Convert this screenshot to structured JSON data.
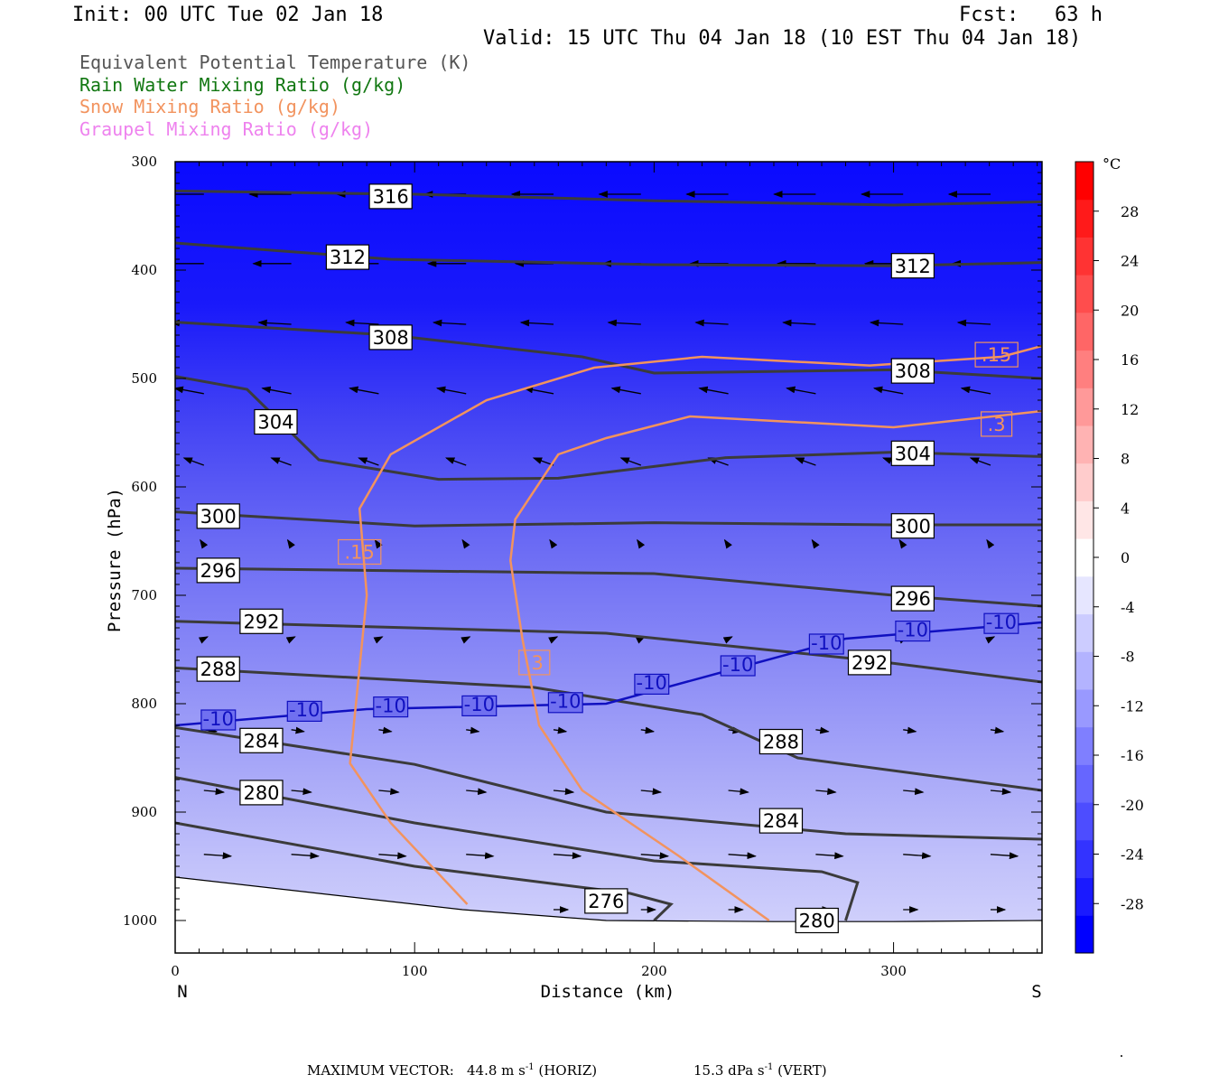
{
  "header": {
    "init": "Init: 00 UTC Tue 02 Jan 18",
    "fcst": "Fcst:   63 h",
    "valid": "Valid: 15 UTC Thu 04 Jan 18 (10 EST Thu 04 Jan 18)"
  },
  "legend": [
    {
      "label": "Equivalent Potential Temperature (K)",
      "color": "#555555"
    },
    {
      "label": "Rain Water Mixing Ratio (g/kg)",
      "color": "#117711"
    },
    {
      "label": "Snow Mixing Ratio (g/kg)",
      "color": "#f2935e"
    },
    {
      "label": "Graupel Mixing Ratio (g/kg)",
      "color": "#ee82ee"
    }
  ],
  "chart_data": {
    "type": "cross-section",
    "xlabel": "Distance (km)",
    "ylabel": "Pressure (hPa)",
    "xlim": [
      0,
      362
    ],
    "ylim": [
      1030,
      300
    ],
    "x_ticks": [
      "0",
      "100",
      "200",
      "300"
    ],
    "y_ticks": [
      "300",
      "400",
      "500",
      "600",
      "700",
      "800",
      "900",
      "1000"
    ],
    "x_end_labels": {
      "left": "N",
      "right": "S"
    },
    "theta_e_contours": [
      {
        "label": "316",
        "points": [
          [
            0,
            327
          ],
          [
            100,
            330
          ],
          [
            200,
            336
          ],
          [
            300,
            340
          ],
          [
            362,
            337
          ]
        ],
        "label_at": [
          90,
          332
        ]
      },
      {
        "label": "312",
        "points": [
          [
            0,
            375
          ],
          [
            90,
            390
          ],
          [
            200,
            395
          ],
          [
            300,
            396
          ],
          [
            362,
            393
          ]
        ],
        "label_at": [
          72,
          388
        ]
      },
      {
        "label": "312",
        "points": [],
        "label_at": [
          308,
          396
        ]
      },
      {
        "label": "308",
        "points": [
          [
            0,
            448
          ],
          [
            90,
            460
          ],
          [
            170,
            480
          ],
          [
            200,
            495
          ],
          [
            300,
            492
          ],
          [
            362,
            500
          ]
        ],
        "label_at": [
          90,
          462
        ]
      },
      {
        "label": "308",
        "points": [],
        "label_at": [
          308,
          493
        ]
      },
      {
        "label": "304",
        "points": [
          [
            0,
            498
          ],
          [
            30,
            510
          ],
          [
            60,
            575
          ],
          [
            110,
            593
          ],
          [
            160,
            592
          ],
          [
            230,
            573
          ],
          [
            300,
            568
          ],
          [
            362,
            572
          ]
        ],
        "label_at": [
          42,
          540
        ]
      },
      {
        "label": "304",
        "points": [],
        "label_at": [
          308,
          569
        ]
      },
      {
        "label": "300",
        "points": [
          [
            0,
            623
          ],
          [
            100,
            636
          ],
          [
            200,
            633
          ],
          [
            300,
            635
          ],
          [
            362,
            635
          ]
        ],
        "label_at": [
          18,
          627
        ]
      },
      {
        "label": "300",
        "points": [],
        "label_at": [
          308,
          636
        ]
      },
      {
        "label": "296",
        "points": [
          [
            0,
            675
          ],
          [
            200,
            680
          ],
          [
            300,
            700
          ],
          [
            362,
            710
          ]
        ],
        "label_at": [
          18,
          677
        ]
      },
      {
        "label": "296",
        "points": [],
        "label_at": [
          308,
          703
        ]
      },
      {
        "label": "292",
        "points": [
          [
            0,
            724
          ],
          [
            180,
            735
          ],
          [
            290,
            760
          ],
          [
            362,
            780
          ]
        ],
        "label_at": [
          36,
          724
        ]
      },
      {
        "label": "292",
        "points": [],
        "label_at": [
          290,
          762
        ]
      },
      {
        "label": "288",
        "points": [
          [
            0,
            767
          ],
          [
            150,
            785
          ],
          [
            220,
            810
          ],
          [
            260,
            850
          ],
          [
            362,
            880
          ]
        ],
        "label_at": [
          18,
          768
        ]
      },
      {
        "label": "288",
        "points": [],
        "label_at": [
          253,
          835
        ]
      },
      {
        "label": "284",
        "points": [
          [
            0,
            822
          ],
          [
            100,
            856
          ],
          [
            180,
            900
          ],
          [
            280,
            920
          ],
          [
            362,
            925
          ]
        ],
        "label_at": [
          36,
          834
        ]
      },
      {
        "label": "284",
        "points": [],
        "label_at": [
          253,
          908
        ]
      },
      {
        "label": "280",
        "points": [
          [
            0,
            868
          ],
          [
            100,
            910
          ],
          [
            200,
            945
          ],
          [
            270,
            955
          ],
          [
            285,
            965
          ],
          [
            280,
            1000
          ]
        ],
        "label_at": [
          36,
          882
        ]
      },
      {
        "label": "280",
        "points": [],
        "label_at": [
          268,
          1000
        ]
      },
      {
        "label": "276",
        "points": [
          [
            0,
            910
          ],
          [
            100,
            950
          ],
          [
            190,
            975
          ],
          [
            207,
            985
          ],
          [
            200,
            1000
          ]
        ],
        "label_at": [
          180,
          982
        ]
      }
    ],
    "temperature_contours": [
      {
        "label": "-10",
        "points": [
          [
            0,
            820
          ],
          [
            80,
            805
          ],
          [
            180,
            800
          ],
          [
            230,
            770
          ],
          [
            280,
            740
          ],
          [
            362,
            725
          ]
        ]
      }
    ],
    "temperature_contour_labels": [
      "-10",
      "-10",
      "-10",
      "-10",
      "-10",
      "-10",
      "-10",
      "-10",
      "-10",
      "-10"
    ],
    "snow_contours": [
      {
        "label": ".15",
        "points": [
          [
            122,
            985
          ],
          [
            90,
            910
          ],
          [
            73,
            855
          ],
          [
            80,
            700
          ],
          [
            77,
            620
          ],
          [
            90,
            570
          ],
          [
            130,
            520
          ],
          [
            175,
            490
          ],
          [
            220,
            480
          ],
          [
            290,
            488
          ],
          [
            345,
            480
          ],
          [
            362,
            470
          ]
        ]
      },
      {
        "label": ".3",
        "points": [
          [
            248,
            1000
          ],
          [
            210,
            940
          ],
          [
            170,
            880
          ],
          [
            152,
            820
          ],
          [
            145,
            740
          ],
          [
            140,
            668
          ],
          [
            142,
            630
          ],
          [
            160,
            570
          ],
          [
            180,
            555
          ],
          [
            215,
            535
          ],
          [
            300,
            545
          ],
          [
            362,
            530
          ]
        ]
      }
    ],
    "snow_contour_labels": [
      ".15",
      ".15",
      ".3",
      ".3"
    ],
    "colorbar": {
      "unit": "°C",
      "range": [
        -32,
        32
      ],
      "ticks": [
        "28",
        "24",
        "20",
        "16",
        "12",
        "8",
        "4",
        "0",
        "-4",
        "-8",
        "-12",
        "-16",
        "-20",
        "-24",
        "-28"
      ],
      "colors": [
        "#0000ff",
        "#1a1aff",
        "#3333ff",
        "#4d4dff",
        "#6666ff",
        "#7f7fff",
        "#9999ff",
        "#b3b3ff",
        "#ccccff",
        "#e6e6ff",
        "#ffffff",
        "#ffe6e6",
        "#ffcccc",
        "#ffb3b3",
        "#ff9999",
        "#ff7f7f",
        "#ff6666",
        "#ff4d4d",
        "#ff3333",
        "#ff1a1a",
        "#ff0000"
      ]
    }
  },
  "footer": {
    "max_vector_label": "MAXIMUM VECTOR:",
    "horiz": "44.8 m s",
    "horiz_sup": "-1",
    "horiz_tail": " (HORIZ)",
    "vert": "15.3 dPa s",
    "vert_sup": "-1",
    "vert_tail": " (VERT)"
  }
}
